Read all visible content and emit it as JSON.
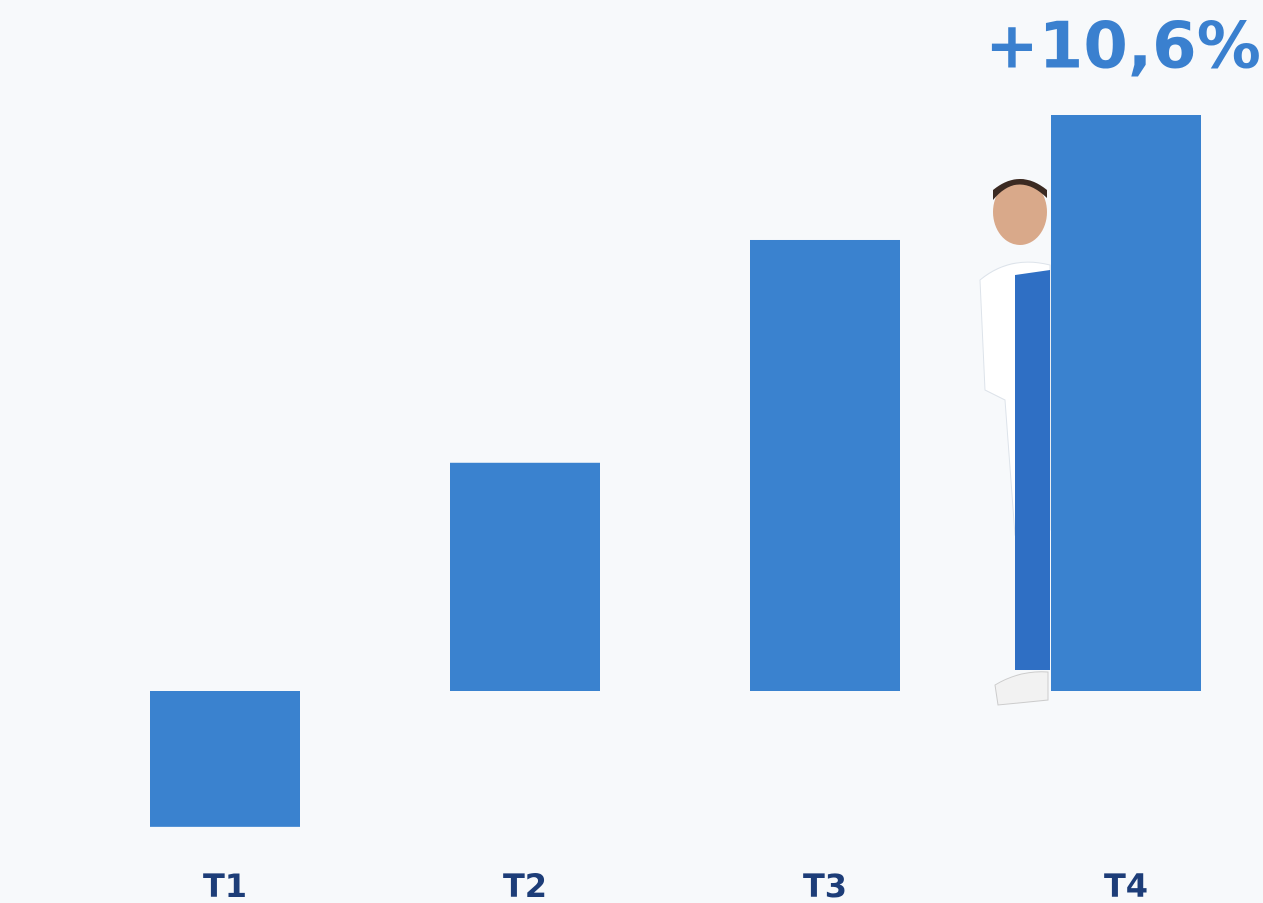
{
  "chart_data": {
    "type": "bar",
    "categories": [
      "T1",
      "T2",
      "T3",
      "T4"
    ],
    "values": [
      -2.5,
      4.2,
      8.3,
      10.6
    ],
    "value_labels": [
      null,
      null,
      null,
      "+10,6%"
    ],
    "color": "#3a82cf"
  }
}
